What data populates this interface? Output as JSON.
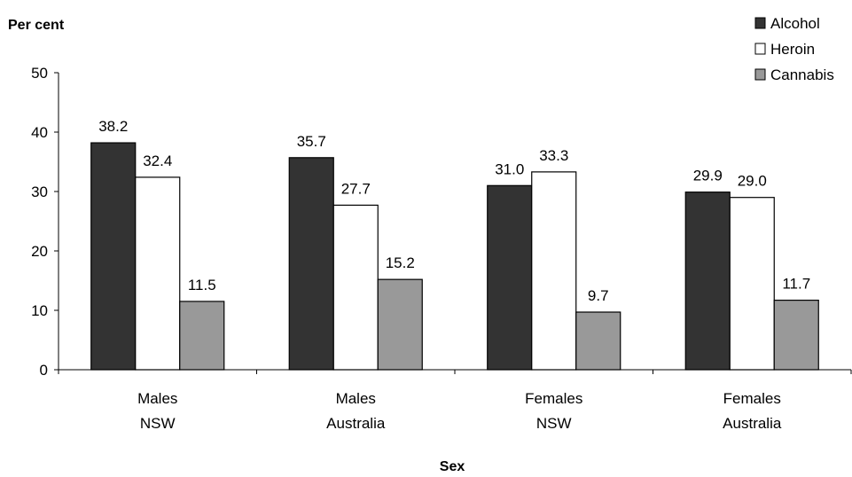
{
  "chart_data": {
    "type": "bar",
    "title": "",
    "xlabel": "Sex",
    "ylabel": "Per cent",
    "ylim": [
      0,
      50
    ],
    "yticks": [
      0,
      10,
      20,
      30,
      40,
      50
    ],
    "grid": false,
    "legend_position": "top-right",
    "categories": [
      [
        "Males",
        "NSW"
      ],
      [
        "Males",
        "Australia"
      ],
      [
        "Females",
        "NSW"
      ],
      [
        "Females",
        "Australia"
      ]
    ],
    "series": [
      {
        "name": "Alcohol",
        "color": "#333333",
        "values": [
          38.2,
          35.7,
          31.0,
          29.9
        ],
        "labels": [
          "38.2",
          "35.7",
          "31.0",
          "29.9"
        ]
      },
      {
        "name": "Heroin",
        "color": "#ffffff",
        "values": [
          32.4,
          27.7,
          33.3,
          29.0
        ],
        "labels": [
          "32.4",
          "27.7",
          "33.3",
          "29.0"
        ]
      },
      {
        "name": "Cannabis",
        "color": "#999999",
        "values": [
          11.5,
          15.2,
          9.7,
          11.7
        ],
        "labels": [
          "11.5",
          "15.2",
          "9.7",
          "11.7"
        ]
      }
    ]
  }
}
